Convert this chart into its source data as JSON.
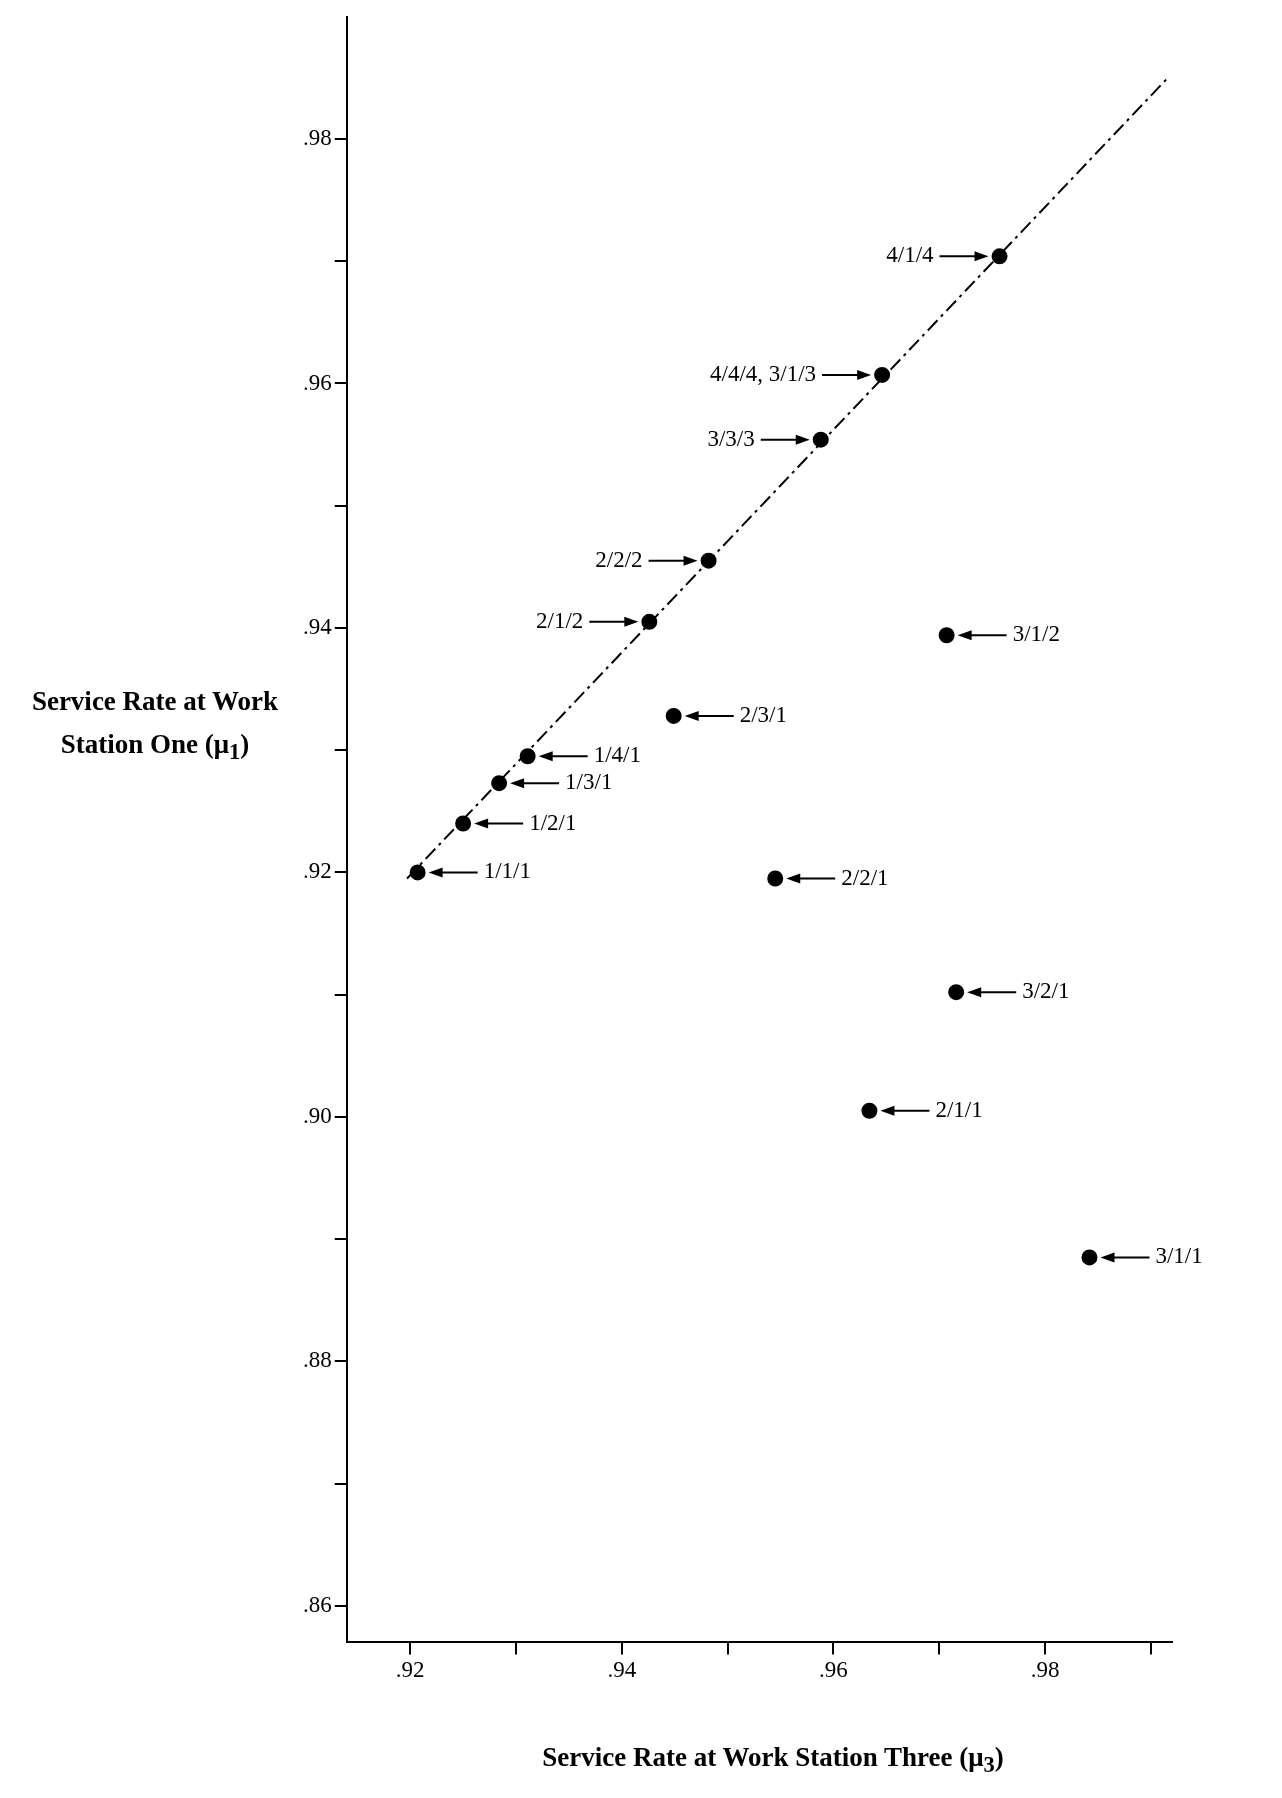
{
  "chart_data": {
    "type": "scatter",
    "xlabel": "Service Rate at Work Station Three (μ$_{3}$)",
    "ylabel": "Service Rate at Work Station One (μ$_{1}$)",
    "xlim": [
      0.914,
      0.992
    ],
    "ylim": [
      0.857,
      0.99
    ],
    "xticks": [
      {
        "value": 0.92,
        "label": ".92"
      },
      {
        "value": 0.93,
        "label": null
      },
      {
        "value": 0.94,
        "label": ".94"
      },
      {
        "value": 0.95,
        "label": null
      },
      {
        "value": 0.96,
        "label": ".96"
      },
      {
        "value": 0.97,
        "label": null
      },
      {
        "value": 0.98,
        "label": ".98"
      },
      {
        "value": 0.99,
        "label": null
      }
    ],
    "yticks": [
      {
        "value": 0.86,
        "label": ".86"
      },
      {
        "value": 0.87,
        "label": null
      },
      {
        "value": 0.88,
        "label": ".88"
      },
      {
        "value": 0.89,
        "label": null
      },
      {
        "value": 0.9,
        "label": ".90"
      },
      {
        "value": 0.91,
        "label": null
      },
      {
        "value": 0.92,
        "label": ".92"
      },
      {
        "value": 0.93,
        "label": null
      },
      {
        "value": 0.94,
        "label": ".94"
      },
      {
        "value": 0.95,
        "label": null
      },
      {
        "value": 0.96,
        "label": ".96"
      },
      {
        "value": 0.97,
        "label": null
      },
      {
        "value": 0.98,
        "label": ".98"
      }
    ],
    "grid": false,
    "legend": false,
    "marker": "circle",
    "series": [
      {
        "color": "#000000",
        "x": [
          0.9207,
          0.925,
          0.9284,
          0.9311,
          0.9426,
          0.9482,
          0.9588,
          0.9646,
          0.9757,
          0.9449,
          0.9707,
          0.9545,
          0.9716,
          0.9634,
          0.9842
        ],
        "values": [
          0.92,
          0.924,
          0.9273,
          0.9295,
          0.9405,
          0.9455,
          0.9554,
          0.9607,
          0.9704,
          0.9328,
          0.9394,
          0.9195,
          0.9102,
          0.9005,
          0.8885
        ]
      },
      {
        "type": "line",
        "color": "#000000",
        "marker": "none",
        "line_style": "dashed",
        "x": [
          0.9197,
          0.9916
        ],
        "values": [
          0.9195,
          0.985
        ]
      }
    ],
    "annotations": [
      {
        "text": "1/1/1",
        "x": 0.9207,
        "y": 0.92
      },
      {
        "text": "1/2/1",
        "x": 0.925,
        "y": 0.924
      },
      {
        "text": "1/3/1",
        "x": 0.9284,
        "y": 0.9273
      },
      {
        "text": "1/4/1",
        "x": 0.9311,
        "y": 0.9295
      },
      {
        "text": "2/1/2",
        "x": 0.9426,
        "y": 0.9405
      },
      {
        "text": "2/2/2",
        "x": 0.9482,
        "y": 0.9455
      },
      {
        "text": "3/3/3",
        "x": 0.9588,
        "y": 0.9554
      },
      {
        "text": "4/4/4, 3/1/3",
        "x": 0.9646,
        "y": 0.9607
      },
      {
        "text": "4/1/4",
        "x": 0.9757,
        "y": 0.9704
      },
      {
        "text": "2/3/1",
        "x": 0.9449,
        "y": 0.9328
      },
      {
        "text": "3/1/2",
        "x": 0.9707,
        "y": 0.9394
      },
      {
        "text": "2/2/1",
        "x": 0.9545,
        "y": 0.9195
      },
      {
        "text": "3/2/1",
        "x": 0.9716,
        "y": 0.9102
      },
      {
        "text": "2/1/1",
        "x": 0.9634,
        "y": 0.9005
      },
      {
        "text": "3/1/1",
        "x": 0.9842,
        "y": 0.8885
      }
    ]
  }
}
